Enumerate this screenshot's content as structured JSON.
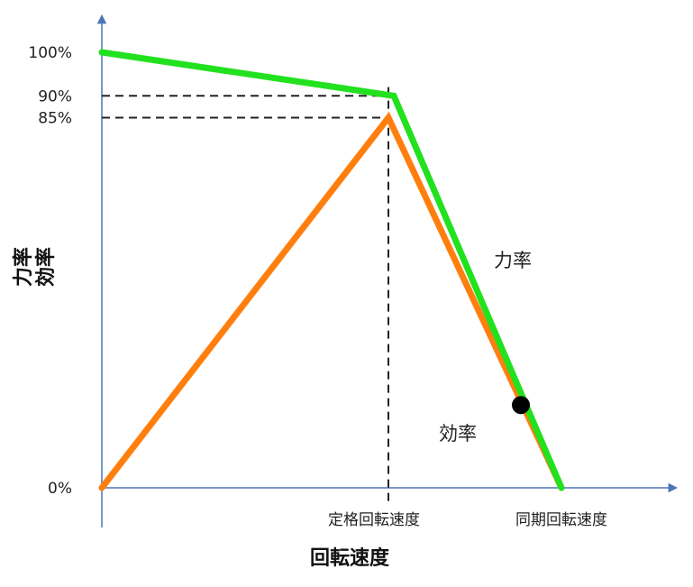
{
  "chart_data": {
    "type": "line",
    "xlabel": "回転速度",
    "ylabel": "力率 効率",
    "ylabel_lines": [
      "力率",
      "効率"
    ],
    "y_ticks": [
      {
        "label": "100%",
        "value": 100
      },
      {
        "label": "90%",
        "value": 90
      },
      {
        "label": "85%",
        "value": 85
      },
      {
        "label": "0%",
        "value": 0
      }
    ],
    "x_ticks": [
      {
        "label": "定格回転速度",
        "value": 1.0
      },
      {
        "label": "同期回転速度",
        "value": 1.7
      }
    ],
    "xlim": [
      0,
      2.1
    ],
    "ylim": [
      0,
      107
    ],
    "series": [
      {
        "name": "力率",
        "color": "#22e11e",
        "x": [
          0,
          1.08,
          1.7
        ],
        "y": [
          100,
          90,
          0
        ]
      },
      {
        "name": "効率",
        "color": "#ff7f0e",
        "x": [
          0,
          1.06,
          1.7
        ],
        "y": [
          0,
          85,
          0
        ]
      }
    ],
    "reference_lines": [
      {
        "type": "horizontal",
        "y": 90,
        "x_to": 1.06
      },
      {
        "type": "horizontal",
        "y": 85,
        "x_to": 1.06
      },
      {
        "type": "vertical",
        "x": 1.06,
        "y_to": 92
      }
    ],
    "marker": {
      "x": 1.55,
      "y": 19,
      "color": "#000000"
    },
    "grid": false,
    "legend": "none"
  }
}
